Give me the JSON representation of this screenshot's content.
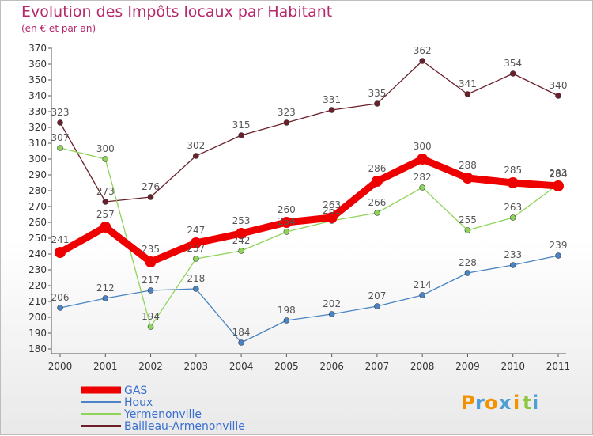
{
  "title": "Evolution des Impôts locaux par Habitant",
  "subtitle": "(en € et par an)",
  "logo": {
    "letters": [
      "P",
      "r",
      "o",
      "x",
      "i",
      "t",
      "i"
    ],
    "colors": [
      "#f29200",
      "#4f9fd6",
      "#f29200",
      "#4f9fd6",
      "#f29200",
      "#8dc63f",
      "#4f9fd6"
    ]
  },
  "chart_data": {
    "type": "line",
    "x": [
      "2000",
      "2001",
      "2002",
      "2003",
      "2004",
      "2005",
      "2006",
      "2007",
      "2008",
      "2009",
      "2010",
      "2011"
    ],
    "ylim": [
      180,
      370
    ],
    "yticks": [
      180,
      190,
      200,
      210,
      220,
      230,
      240,
      250,
      260,
      270,
      280,
      290,
      300,
      310,
      320,
      330,
      340,
      350,
      360,
      370
    ],
    "grid": false,
    "legend_position": "bottom-left",
    "series": [
      {
        "name": "Bailleau-Armenonville",
        "color": "#6b1f2a",
        "values": [
          323,
          273,
          276,
          302,
          315,
          323,
          331,
          335,
          362,
          341,
          354,
          340
        ]
      },
      {
        "name": "Houx",
        "color": "#4a84c4",
        "values": [
          206,
          212,
          217,
          218,
          184,
          198,
          202,
          207,
          214,
          228,
          233,
          239
        ]
      },
      {
        "name": "Yermenonville",
        "color": "#8fd45a",
        "values": [
          307,
          300,
          194,
          237,
          242,
          254,
          261,
          266,
          282,
          255,
          263,
          284
        ]
      },
      {
        "name": "GAS",
        "color": "#ee0000",
        "values": [
          241,
          257,
          235,
          247,
          253,
          260,
          263,
          286,
          300,
          288,
          285,
          283
        ]
      }
    ],
    "legend_order": [
      "GAS",
      "Houx",
      "Yermenonville",
      "Bailleau-Armenonville"
    ]
  }
}
